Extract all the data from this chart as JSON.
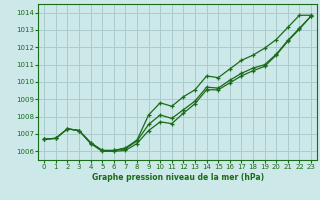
{
  "title": "Graphe pression niveau de la mer (hPa)",
  "bg_color": "#cce8e8",
  "grid_color": "#aacccc",
  "line_color": "#1a6b1a",
  "x_min": -0.5,
  "x_max": 23.5,
  "y_min": 1005.5,
  "y_max": 1014.5,
  "yticks": [
    1006,
    1007,
    1008,
    1009,
    1010,
    1011,
    1012,
    1013,
    1014
  ],
  "xticks": [
    0,
    1,
    2,
    3,
    4,
    5,
    6,
    7,
    8,
    9,
    10,
    11,
    12,
    13,
    14,
    15,
    16,
    17,
    18,
    19,
    20,
    21,
    22,
    23
  ],
  "upper": [
    1006.7,
    1006.75,
    1007.3,
    1007.2,
    1006.5,
    1006.05,
    1006.05,
    1006.15,
    1006.6,
    1008.0,
    1008.7,
    1008.5,
    1009.1,
    1009.5,
    1010.3,
    1010.2,
    1010.7,
    1011.2,
    1011.5,
    1011.9,
    1012.4,
    1013.1,
    1013.8,
    1013.8
  ],
  "mid": [
    1006.7,
    1006.75,
    1007.3,
    1007.2,
    1006.5,
    1006.05,
    1006.05,
    1006.15,
    1006.6,
    1007.5,
    1008.05,
    1007.85,
    1008.35,
    1008.85,
    1009.65,
    1009.6,
    1010.05,
    1010.45,
    1010.75,
    1010.9,
    1011.55,
    1012.35,
    1013.05,
    1013.8
  ],
  "lower": [
    1006.7,
    1006.75,
    1007.3,
    1007.2,
    1006.45,
    1006.0,
    1006.0,
    1006.0,
    1006.45,
    1007.2,
    1007.7,
    1007.6,
    1008.2,
    1008.75,
    1009.55,
    1009.55,
    1009.95,
    1010.35,
    1010.65,
    1010.9,
    1011.55,
    1012.35,
    1013.05,
    1013.8
  ]
}
